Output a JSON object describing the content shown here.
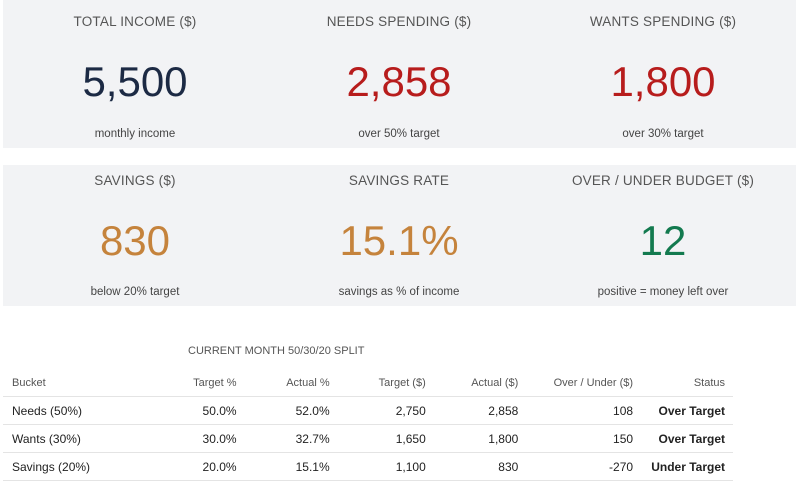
{
  "kpi_row1": [
    {
      "title": "TOTAL INCOME ($)",
      "value": "5,500",
      "sub": "monthly income",
      "color": "#1c2a44"
    },
    {
      "title": "NEEDS SPENDING ($)",
      "value": "2,858",
      "sub": "over 50% target",
      "color": "#b71c1c"
    },
    {
      "title": "WANTS SPENDING ($)",
      "value": "1,800",
      "sub": "over 30% target",
      "color": "#b71c1c"
    }
  ],
  "kpi_row2": [
    {
      "title": "SAVINGS ($)",
      "value": "830",
      "sub": "below 20% target",
      "color": "#c5833c"
    },
    {
      "title": "SAVINGS RATE",
      "value": "15.1%",
      "sub": "savings as % of income",
      "color": "#c5833c"
    },
    {
      "title": "OVER / UNDER BUDGET ($)",
      "value": "12",
      "sub": "positive = money left over",
      "color": "#137a4f"
    }
  ],
  "table": {
    "title": "CURRENT MONTH 50/30/20 SPLIT",
    "headers": {
      "bucket": "Bucket",
      "target_pct": "Target %",
      "actual_pct": "Actual %",
      "target_amt": "Target ($)",
      "actual_amt": "Actual ($)",
      "over_under": "Over / Under ($)",
      "status": "Status"
    },
    "rows": [
      {
        "bucket": "Needs (50%)",
        "target_pct": "50.0%",
        "actual_pct": "52.0%",
        "target_amt": "2,750",
        "actual_amt": "2,858",
        "over_under": "108",
        "status": "Over Target"
      },
      {
        "bucket": "Wants (30%)",
        "target_pct": "30.0%",
        "actual_pct": "32.7%",
        "target_amt": "1,650",
        "actual_amt": "1,800",
        "over_under": "150",
        "status": "Over Target"
      },
      {
        "bucket": "Savings (20%)",
        "target_pct": "20.0%",
        "actual_pct": "15.1%",
        "target_amt": "1,100",
        "actual_amt": "830",
        "over_under": "-270",
        "status": "Under Target"
      }
    ]
  }
}
